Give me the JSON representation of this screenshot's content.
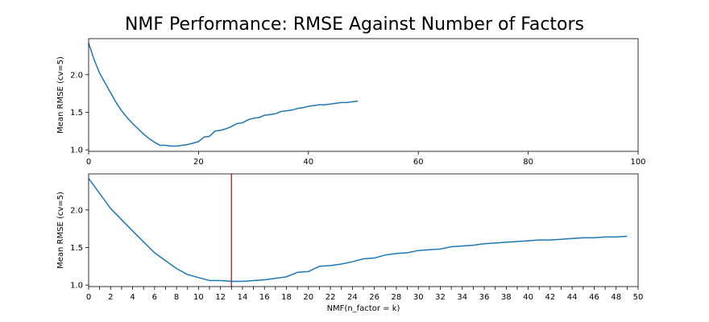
{
  "figure": {
    "title": "NMF Performance: RMSE Against Number of Factors"
  },
  "colors": {
    "line": "#1f77b4",
    "vline": "#d62728",
    "axis": "#000000"
  },
  "chart_data": [
    {
      "type": "line",
      "title": "NMF Performance: RMSE Against Number of Factors",
      "xlabel": "",
      "ylabel": "Mean RMSE (cv=5)",
      "xlim": [
        0,
        100
      ],
      "ylim": [
        0.98,
        2.48
      ],
      "xticks": [
        0,
        20,
        40,
        60,
        80,
        100
      ],
      "yticks": [
        1.0,
        1.5,
        2.0
      ],
      "ytick_labels": [
        "1.0",
        "1.5",
        "2.0"
      ],
      "grid": false,
      "series": [
        {
          "x": [
            0,
            1,
            2,
            3,
            4,
            5,
            6,
            7,
            8,
            9,
            10,
            11,
            12,
            13,
            14,
            15,
            16,
            17,
            18,
            19,
            20,
            21,
            22,
            23,
            24,
            25,
            26,
            27,
            28,
            29,
            30,
            31,
            32,
            33,
            34,
            35,
            36,
            37,
            38,
            39,
            40,
            41,
            42,
            43,
            44,
            45,
            46,
            47,
            48,
            49
          ],
          "y": [
            2.42,
            2.2,
            2.02,
            1.89,
            1.76,
            1.63,
            1.52,
            1.43,
            1.35,
            1.28,
            1.21,
            1.15,
            1.1,
            1.06,
            1.06,
            1.05,
            1.05,
            1.06,
            1.07,
            1.09,
            1.11,
            1.17,
            1.18,
            1.25,
            1.26,
            1.28,
            1.31,
            1.35,
            1.36,
            1.4,
            1.42,
            1.43,
            1.46,
            1.47,
            1.48,
            1.51,
            1.52,
            1.53,
            1.55,
            1.56,
            1.58,
            1.59,
            1.6,
            1.6,
            1.61,
            1.62,
            1.63,
            1.63,
            1.64,
            1.65
          ]
        }
      ]
    },
    {
      "type": "line",
      "xlabel": "NMF(n_factor = k)",
      "ylabel": "Mean RMSE (cv=5)",
      "xlim": [
        0,
        50
      ],
      "ylim": [
        0.98,
        2.48
      ],
      "xticks": [
        0,
        1,
        2,
        3,
        4,
        5,
        6,
        7,
        8,
        9,
        10,
        11,
        12,
        13,
        14,
        15,
        16,
        17,
        18,
        19,
        20,
        21,
        22,
        23,
        24,
        25,
        26,
        27,
        28,
        29,
        30,
        31,
        32,
        33,
        34,
        35,
        36,
        37,
        38,
        39,
        40,
        41,
        42,
        43,
        44,
        45,
        46,
        47,
        48,
        49,
        50
      ],
      "yticks": [
        1.0,
        1.5,
        2.0
      ],
      "ytick_labels": [
        "1.0",
        "1.5",
        "2.0"
      ],
      "grid": false,
      "vline_x": 13,
      "series": [
        {
          "x": [
            0,
            2,
            4,
            6,
            8,
            9,
            10,
            11,
            12,
            13,
            14,
            15,
            16,
            17,
            18,
            19,
            20,
            21,
            22,
            23,
            24,
            25,
            26,
            27,
            28,
            29,
            30,
            31,
            32,
            33,
            34,
            35,
            36,
            37,
            38,
            39,
            40,
            41,
            42,
            43,
            44,
            45,
            46,
            47,
            48,
            49
          ],
          "y": [
            2.42,
            2.02,
            1.72,
            1.43,
            1.22,
            1.14,
            1.1,
            1.06,
            1.06,
            1.05,
            1.05,
            1.06,
            1.07,
            1.09,
            1.11,
            1.17,
            1.18,
            1.25,
            1.26,
            1.28,
            1.31,
            1.35,
            1.36,
            1.4,
            1.42,
            1.43,
            1.46,
            1.47,
            1.48,
            1.51,
            1.52,
            1.53,
            1.55,
            1.56,
            1.57,
            1.58,
            1.59,
            1.6,
            1.6,
            1.61,
            1.62,
            1.63,
            1.63,
            1.64,
            1.64,
            1.65
          ]
        }
      ]
    }
  ]
}
